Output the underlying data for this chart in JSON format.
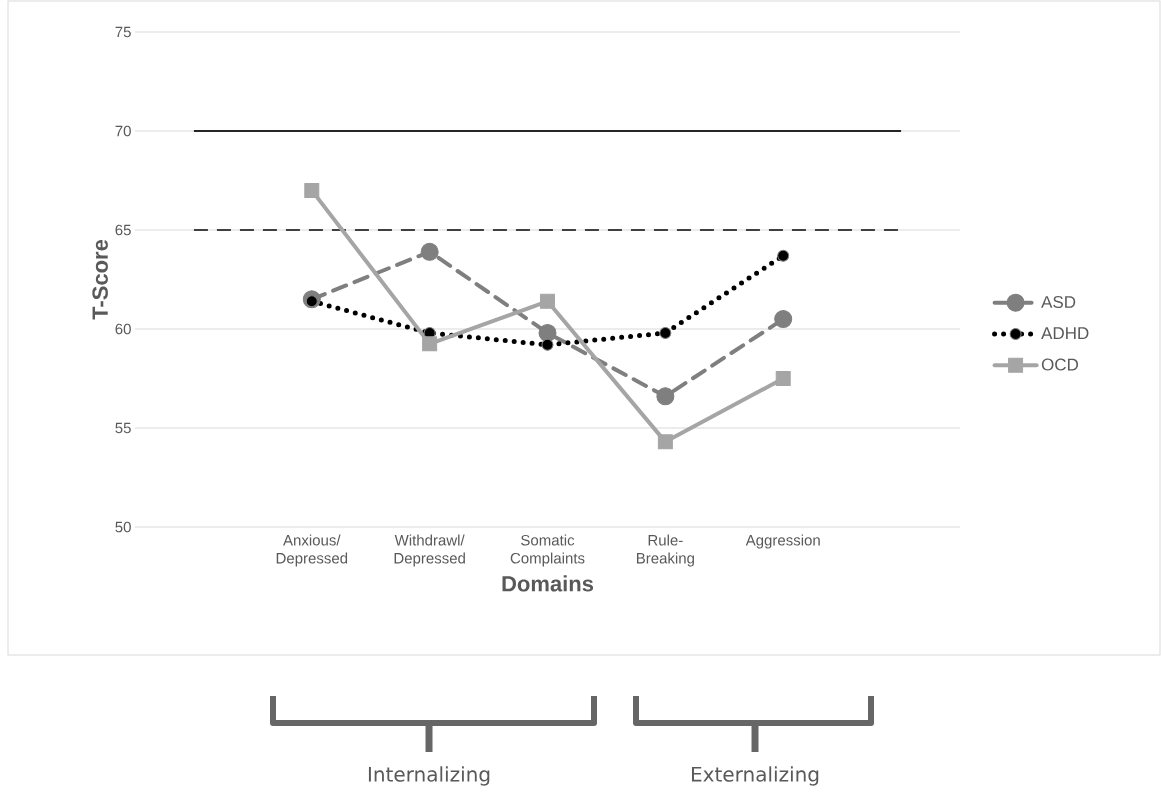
{
  "chart_data": {
    "type": "line",
    "xlabel": "Domains",
    "ylabel": "T-Score",
    "categories": [
      "Anxious/ Depressed",
      "Withdrawl/ Depressed",
      "Somatic Complaints",
      "Rule-Breaking",
      "Aggression"
    ],
    "series": [
      {
        "name": "ASD",
        "color": "#7f7f7f",
        "marker": "circle",
        "line_style": "dashed",
        "values": [
          61.5,
          63.9,
          59.8,
          56.6,
          60.5
        ]
      },
      {
        "name": "ADHD",
        "color": "#000000",
        "marker": "circle",
        "line_style": "dotted",
        "values": [
          61.4,
          59.8,
          59.2,
          59.8,
          63.7
        ]
      },
      {
        "name": "OCD",
        "color": "#a5a5a5",
        "marker": "square",
        "line_style": "solid",
        "values": [
          67.0,
          59.25,
          61.4,
          54.3,
          57.5
        ]
      }
    ],
    "ylim": [
      50,
      75
    ],
    "yticks": [
      50,
      55,
      60,
      65,
      70,
      75
    ],
    "grid": "y",
    "legend": "right",
    "ref_lines": [
      {
        "axis": "y",
        "value": 70,
        "color": "#262626",
        "line_style": "solid"
      },
      {
        "axis": "y",
        "value": 65,
        "color": "#404040",
        "line_style": "dashed"
      }
    ],
    "annotations": [
      "Internalizing",
      "Externalizing"
    ]
  }
}
